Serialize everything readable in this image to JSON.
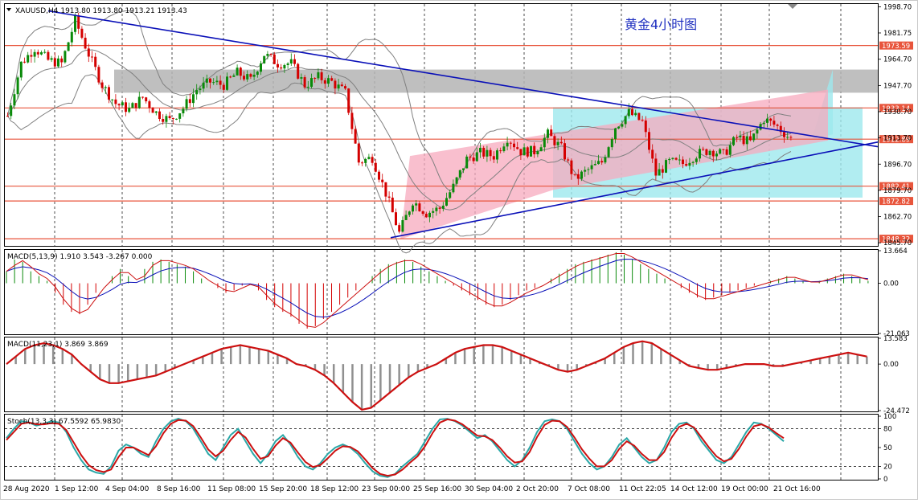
{
  "symbol_header": "XAUUSD,H4  1913.80 1913.80 1913.21 1913.43",
  "chart_title": "黄金4小时图",
  "colors": {
    "bull": "#0a8a0a",
    "bear": "#d40000",
    "bands": "#808080",
    "trend": "#0a10b8",
    "hline": "#e8553c",
    "hline_label": "#e8553c",
    "pink": "#f7a9bd",
    "cyan": "#9ee8ee",
    "gray_zone": "#b4b4b4",
    "macd_sig": "#0a10b8",
    "macd_main": "#cc1010",
    "stoch_k": "#2aa7a7",
    "stoch_d": "#cc1010"
  },
  "chart_data": [
    {
      "type": "candlestick",
      "panel": "price",
      "y_axis_ticks": [
        "1998.70",
        "1981.75",
        "1964.70",
        "1947.70",
        "1930.70",
        "1913.70",
        "1896.70",
        "1879.70",
        "1862.70",
        "1845.70"
      ],
      "ylim": [
        1843.7,
        2000.5
      ],
      "x_tick_labels": [
        "28 Aug 2020",
        "1 Sep 12:00",
        "4 Sep 04:00",
        "8 Sep 16:00",
        "11 Sep 08:00",
        "15 Sep 20:00",
        "18 Sep 12:00",
        "23 Sep 00:00",
        "25 Sep 16:00",
        "30 Sep 04:00",
        "2 Oct 20:00",
        "7 Oct 08:00",
        "11 Oct 22:05",
        "14 Oct 12:00",
        "19 Oct 00:00",
        "21 Oct 16:00"
      ],
      "close_path": [
        [
          0,
          1928
        ],
        [
          4,
          1962
        ],
        [
          8,
          1972
        ],
        [
          12,
          1964
        ],
        [
          16,
          1962
        ],
        [
          20,
          1990
        ],
        [
          24,
          1968
        ],
        [
          28,
          1948
        ],
        [
          32,
          1936
        ],
        [
          36,
          1932
        ],
        [
          40,
          1940
        ],
        [
          44,
          1930
        ],
        [
          48,
          1925
        ],
        [
          52,
          1933
        ],
        [
          56,
          1945
        ],
        [
          60,
          1950
        ],
        [
          64,
          1948
        ],
        [
          68,
          1956
        ],
        [
          72,
          1951
        ],
        [
          76,
          1968
        ],
        [
          80,
          1962
        ],
        [
          84,
          1962
        ],
        [
          88,
          1948
        ],
        [
          92,
          1953
        ],
        [
          96,
          1950
        ],
        [
          100,
          1943
        ],
        [
          104,
          1898
        ],
        [
          108,
          1901
        ],
        [
          112,
          1878
        ],
        [
          116,
          1852
        ],
        [
          120,
          1873
        ],
        [
          124,
          1865
        ],
        [
          128,
          1868
        ],
        [
          132,
          1882
        ],
        [
          136,
          1900
        ],
        [
          140,
          1904
        ],
        [
          144,
          1902
        ],
        [
          148,
          1914
        ],
        [
          152,
          1905
        ],
        [
          156,
          1905
        ],
        [
          160,
          1916
        ],
        [
          164,
          1907
        ],
        [
          168,
          1887
        ],
        [
          172,
          1893
        ],
        [
          176,
          1898
        ],
        [
          180,
          1921
        ],
        [
          184,
          1930
        ],
        [
          188,
          1924
        ],
        [
          192,
          1890
        ],
        [
          196,
          1898
        ],
        [
          200,
          1897
        ],
        [
          204,
          1903
        ],
        [
          208,
          1906
        ],
        [
          212,
          1903
        ],
        [
          216,
          1914
        ],
        [
          220,
          1911
        ],
        [
          224,
          1926
        ],
        [
          228,
          1921
        ],
        [
          232,
          1913
        ]
      ],
      "horizontal_levels": [
        "1973.59",
        "1933.14",
        "1912.89",
        "1882.41",
        "1872.82",
        "1848.32"
      ],
      "current_price": "1912.89"
    },
    {
      "type": "bar",
      "panel": "macd_fast",
      "label": "MACD(5,13,9) 1.910 3.543 -3.267 0.000",
      "y_axis_ticks": [
        "13.664",
        "0.00",
        "-21.063"
      ],
      "ylim": [
        -21.063,
        13.664
      ],
      "values": [
        5,
        10,
        9,
        5,
        3,
        1,
        -4,
        -9,
        -12,
        -13,
        -9,
        -4,
        0,
        3,
        6,
        3,
        0,
        6,
        9,
        10,
        9,
        8,
        7,
        5,
        2,
        0,
        -2,
        -4,
        -3,
        -1,
        0,
        -3,
        -7,
        -10,
        -12,
        -14,
        -17,
        -19,
        -18,
        -15,
        -12,
        -9,
        -6,
        -3,
        0,
        3,
        6,
        8,
        9,
        10,
        9,
        7,
        5,
        3,
        1,
        -1,
        -3,
        -5,
        -7,
        -9,
        -10,
        -9,
        -7,
        -5,
        -3,
        -2,
        0,
        2,
        4,
        6,
        8,
        9,
        10,
        11,
        12,
        13,
        12,
        10,
        8,
        6,
        4,
        2,
        0,
        -2,
        -4,
        -6,
        -7,
        -6,
        -5,
        -4,
        -3,
        -2,
        -1,
        0,
        1,
        2,
        3,
        2,
        1,
        0,
        1,
        2,
        3,
        4,
        3,
        2,
        1
      ]
    },
    {
      "type": "bar",
      "panel": "macd_slow",
      "label": "MACD(11,23,1) 3.869 3.869",
      "y_axis_ticks": [
        "13.583",
        "0.00",
        "-24.472"
      ],
      "ylim": [
        -24.472,
        13.583
      ],
      "values": [
        0,
        4,
        8,
        10,
        11,
        10,
        8,
        5,
        0,
        -4,
        -8,
        -10,
        -10,
        -9,
        -8,
        -7,
        -6,
        -4,
        -2,
        0,
        2,
        4,
        6,
        8,
        9,
        10,
        9,
        8,
        7,
        5,
        3,
        0,
        -1,
        -3,
        -6,
        -10,
        -15,
        -20,
        -24,
        -23,
        -19,
        -15,
        -11,
        -7,
        -4,
        -2,
        0,
        3,
        6,
        8,
        9,
        10,
        10,
        9,
        7,
        5,
        3,
        1,
        -1,
        -3,
        -4,
        -3,
        -1,
        1,
        3,
        6,
        9,
        11,
        12,
        11,
        8,
        5,
        2,
        -1,
        -2,
        -3,
        -3,
        -2,
        -1,
        0,
        0,
        0,
        -1,
        -1,
        0,
        1,
        2,
        3,
        4,
        5,
        6,
        5,
        4
      ]
    },
    {
      "type": "line",
      "panel": "stochastic",
      "label": "Stoch(13,3,3) 67.5592 65.9830",
      "y_axis_ticks": [
        "100",
        "80",
        "50",
        "20",
        "0"
      ],
      "ylim": [
        0,
        100
      ],
      "series": [
        {
          "name": "%K",
          "values": [
            65,
            80,
            92,
            90,
            85,
            88,
            92,
            90,
            75,
            50,
            30,
            15,
            10,
            8,
            20,
            45,
            55,
            50,
            40,
            35,
            60,
            80,
            92,
            96,
            92,
            80,
            60,
            40,
            30,
            50,
            70,
            80,
            60,
            40,
            25,
            40,
            60,
            70,
            55,
            35,
            20,
            15,
            25,
            40,
            50,
            55,
            50,
            40,
            25,
            12,
            5,
            3,
            8,
            20,
            30,
            40,
            60,
            80,
            95,
            96,
            92,
            85,
            75,
            65,
            70,
            60,
            45,
            30,
            20,
            30,
            50,
            75,
            92,
            95,
            92,
            80,
            60,
            40,
            25,
            15,
            20,
            35,
            55,
            65,
            50,
            35,
            25,
            30,
            50,
            75,
            88,
            90,
            80,
            60,
            45,
            30,
            25,
            35,
            55,
            75,
            90,
            88,
            80,
            70,
            60
          ]
        },
        {
          "name": "%D",
          "values": [
            62,
            75,
            88,
            90,
            87,
            87,
            89,
            88,
            78,
            58,
            38,
            22,
            14,
            11,
            15,
            35,
            50,
            50,
            44,
            38,
            52,
            73,
            88,
            94,
            93,
            84,
            66,
            47,
            36,
            45,
            62,
            75,
            66,
            48,
            32,
            36,
            53,
            65,
            58,
            42,
            27,
            19,
            22,
            33,
            45,
            52,
            51,
            44,
            31,
            17,
            8,
            5,
            7,
            15,
            26,
            36,
            52,
            73,
            90,
            95,
            93,
            87,
            78,
            69,
            68,
            62,
            50,
            36,
            26,
            28,
            43,
            67,
            86,
            93,
            92,
            83,
            66,
            47,
            32,
            20,
            20,
            30,
            48,
            60,
            53,
            40,
            30,
            30,
            43,
            66,
            83,
            88,
            82,
            66,
            50,
            36,
            28,
            32,
            48,
            68,
            84,
            87,
            82,
            73,
            65
          ]
        }
      ]
    }
  ]
}
